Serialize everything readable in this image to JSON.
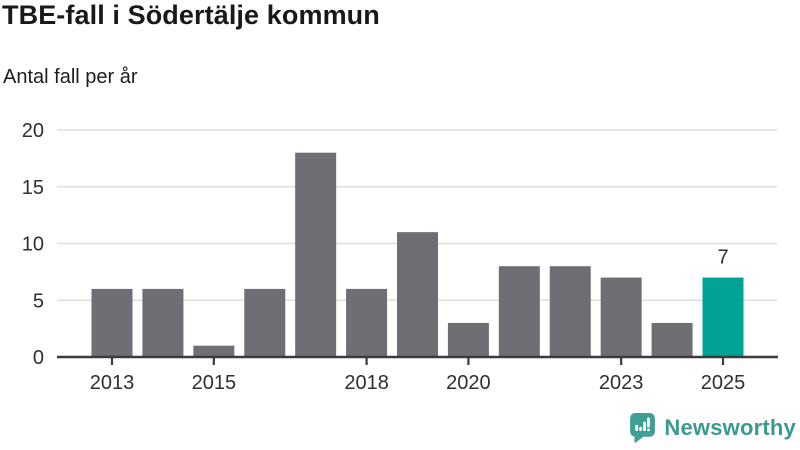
{
  "header": {
    "title": "TBE-fall i Södertälje kommun",
    "subtitle": "Antal fall per år"
  },
  "chart_data": {
    "type": "bar",
    "title": "TBE-fall i Södertälje kommun",
    "subtitle": "Antal fall per år",
    "categories": [
      "2013",
      "2014",
      "2015",
      "2016",
      "2017",
      "2018",
      "2019",
      "2020",
      "2021",
      "2022",
      "2023",
      "2024",
      "2025"
    ],
    "values": [
      6,
      6,
      1,
      6,
      18,
      6,
      11,
      3,
      8,
      8,
      7,
      3,
      7
    ],
    "highlight": {
      "category": "2025",
      "value": 7,
      "value_label": "7"
    },
    "xticks_labeled": [
      "2013",
      "2015",
      "2018",
      "2020",
      "2023",
      "2025"
    ],
    "yticks": [
      0,
      5,
      10,
      15,
      20
    ],
    "ylim": [
      0,
      20
    ],
    "xlabel": "",
    "ylabel": "Antal fall per år",
    "grid": "horizontal",
    "legend": "none",
    "colors": {
      "bar": "#6f6e74",
      "highlight_bar": "#00a396",
      "gridline": "#dedede",
      "axis_line": "#3b3b3f",
      "tick_text": "#2f2f33",
      "annotation_text": "#2f2f33"
    }
  },
  "footer": {
    "brand": "Newsworthy",
    "brand_color": "#3a9a91",
    "logo_icon": "bar-chart-speech-bubble-icon"
  }
}
